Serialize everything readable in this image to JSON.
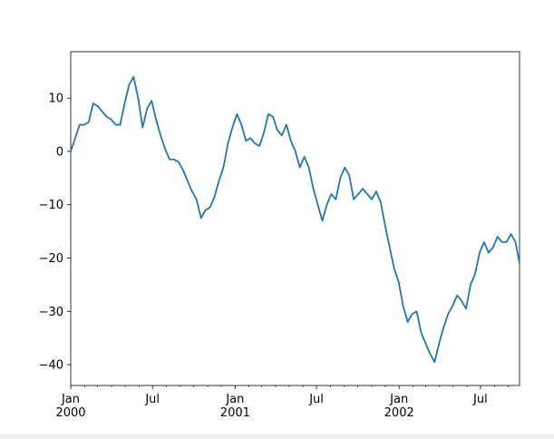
{
  "chart_data": {
    "type": "line",
    "x": [
      "2000-01-01",
      "2000-01-11",
      "2000-01-21",
      "2000-01-31",
      "2000-02-10",
      "2000-02-20",
      "2000-03-01",
      "2000-03-11",
      "2000-03-21",
      "2000-03-31",
      "2000-04-10",
      "2000-04-20",
      "2000-04-30",
      "2000-05-10",
      "2000-05-20",
      "2000-05-30",
      "2000-06-09",
      "2000-06-19",
      "2000-06-29",
      "2000-07-09",
      "2000-07-19",
      "2000-07-29",
      "2000-08-08",
      "2000-08-18",
      "2000-08-28",
      "2000-09-07",
      "2000-09-17",
      "2000-09-27",
      "2000-10-07",
      "2000-10-17",
      "2000-10-27",
      "2000-11-06",
      "2000-11-16",
      "2000-11-26",
      "2000-12-06",
      "2000-12-16",
      "2000-12-26",
      "2001-01-05",
      "2001-01-15",
      "2001-01-25",
      "2001-02-04",
      "2001-02-14",
      "2001-02-24",
      "2001-03-06",
      "2001-03-16",
      "2001-03-26",
      "2001-04-05",
      "2001-04-15",
      "2001-04-25",
      "2001-05-05",
      "2001-05-15",
      "2001-05-25",
      "2001-06-04",
      "2001-06-14",
      "2001-06-24",
      "2001-07-04",
      "2001-07-14",
      "2001-07-24",
      "2001-08-03",
      "2001-08-13",
      "2001-08-23",
      "2001-09-02",
      "2001-09-12",
      "2001-09-22",
      "2001-10-02",
      "2001-10-12",
      "2001-10-22",
      "2001-11-01",
      "2001-11-11",
      "2001-11-21",
      "2001-12-01",
      "2001-12-11",
      "2001-12-21",
      "2001-12-31",
      "2002-01-10",
      "2002-01-20",
      "2002-01-30",
      "2002-02-09",
      "2002-02-19",
      "2002-03-01",
      "2002-03-11",
      "2002-03-21",
      "2002-03-31",
      "2002-04-10",
      "2002-04-20",
      "2002-04-30",
      "2002-05-10",
      "2002-05-20",
      "2002-05-30",
      "2002-06-09",
      "2002-06-19",
      "2002-06-29",
      "2002-07-09",
      "2002-07-19",
      "2002-07-29",
      "2002-08-08",
      "2002-08-18",
      "2002-08-28",
      "2002-09-07",
      "2002-09-17",
      "2002-09-26"
    ],
    "series": [
      {
        "color": "#1f77b4",
        "values": [
          0,
          2.5,
          5,
          5,
          5.5,
          9,
          8.5,
          7.5,
          6.5,
          6,
          5,
          5,
          9,
          12.5,
          14,
          10,
          4.5,
          8,
          9.5,
          6,
          3,
          0.5,
          -1.5,
          -1.5,
          -2,
          -3.5,
          -5.5,
          -7.5,
          -9,
          -12.5,
          -11,
          -10.5,
          -8.5,
          -5.5,
          -3,
          1.5,
          4.5,
          7,
          5,
          2,
          2.5,
          1.5,
          1,
          3.5,
          7,
          6.5,
          4,
          3,
          5,
          2,
          0,
          -3,
          -1,
          -3,
          -7,
          -10,
          -13,
          -10,
          -8,
          -9,
          -5,
          -3,
          -4.5,
          -9,
          -8,
          -7,
          -8,
          -9,
          -7.5,
          -9.5,
          -14,
          -18,
          -22,
          -24.5,
          -29,
          -32,
          -30.5,
          -30,
          -34,
          -36,
          -38,
          -39.5,
          -36,
          -33,
          -30.5,
          -29,
          -27,
          -28,
          -29.5,
          -25,
          -23,
          -19,
          -17,
          -19,
          -18,
          -16,
          -17,
          -17,
          -15.5,
          -17,
          -21
        ]
      }
    ],
    "xlim": [
      "2000-01-01",
      "2002-09-26"
    ],
    "xticks": [
      {
        "value": "2000-01-01",
        "label": "Jan\n2000"
      },
      {
        "value": "2000-07-01",
        "label": "Jul"
      },
      {
        "value": "2001-01-01",
        "label": "Jan\n2001"
      },
      {
        "value": "2001-07-01",
        "label": "Jul"
      },
      {
        "value": "2002-01-01",
        "label": "Jan\n2002"
      },
      {
        "value": "2002-07-01",
        "label": "Jul"
      }
    ],
    "xminorticks": [
      "2000-02-01",
      "2000-03-01",
      "2000-04-01",
      "2000-05-01",
      "2000-06-01",
      "2000-08-01",
      "2000-09-01",
      "2000-10-01",
      "2000-11-01",
      "2000-12-01",
      "2001-02-01",
      "2001-03-01",
      "2001-04-01",
      "2001-05-01",
      "2001-06-01",
      "2001-08-01",
      "2001-09-01",
      "2001-10-01",
      "2001-11-01",
      "2001-12-01",
      "2002-02-01",
      "2002-03-01",
      "2002-04-01",
      "2002-05-01",
      "2002-06-01",
      "2002-08-01",
      "2002-09-01"
    ],
    "ylim": [
      -43.9,
      18.7
    ],
    "yticks": [
      {
        "value": 10,
        "label": "10"
      },
      {
        "value": 0,
        "label": "0"
      },
      {
        "value": -10,
        "label": "−10"
      },
      {
        "value": -20,
        "label": "−20"
      },
      {
        "value": -30,
        "label": "−30"
      },
      {
        "value": -40,
        "label": "−40"
      }
    ],
    "grid": false
  }
}
